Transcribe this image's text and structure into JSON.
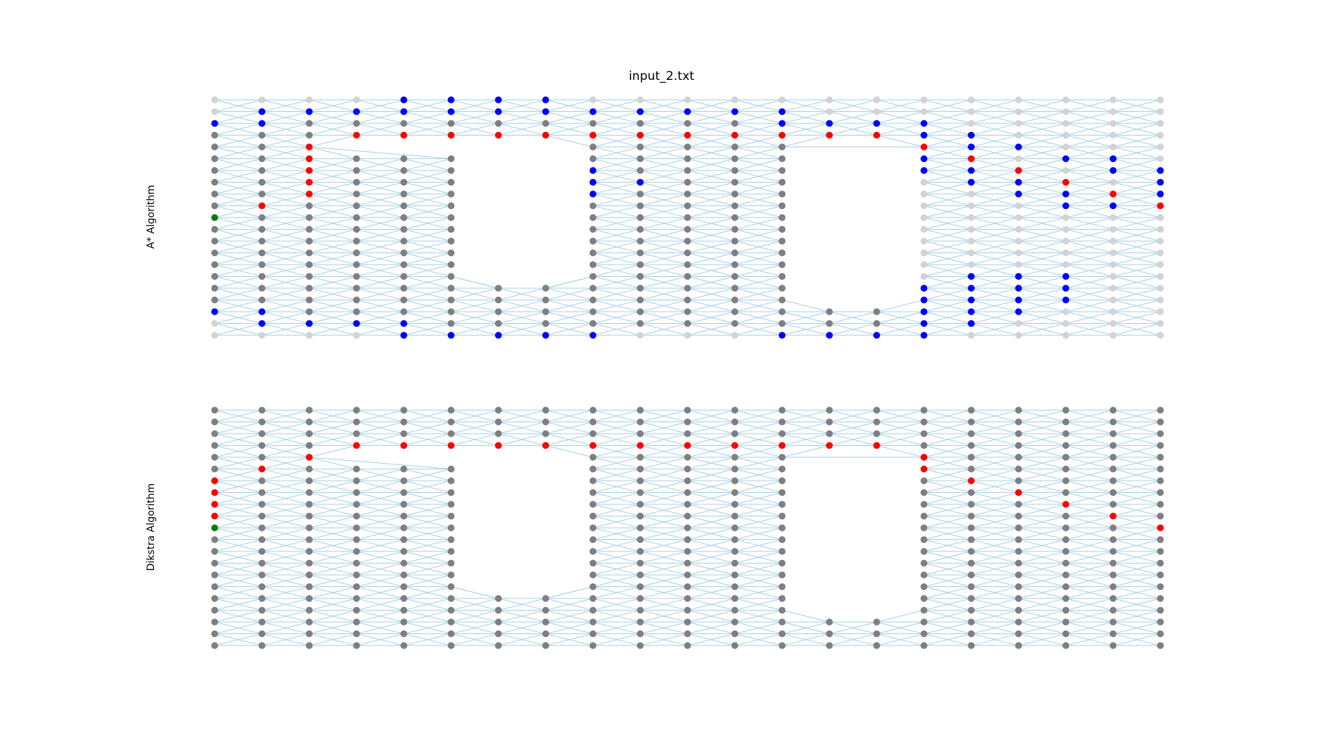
{
  "title": "input_2.txt",
  "chart_data": {
    "type": "scatter",
    "title": "input_2.txt",
    "grid": false,
    "legend": "none",
    "colors": {
      "edge": "#a6cfe3",
      "default": "#7f7f7f",
      "unvisited": "#d3d3d3",
      "visited": "#0000ff",
      "path": "#ff0000",
      "start": "#008000"
    },
    "grid_size": {
      "columns": 21,
      "rows": 21
    },
    "obstacles": [
      {
        "x_range": [
          5,
          8
        ],
        "y_range": [
          5,
          18
        ]
      },
      {
        "x_range": [
          8,
          11
        ],
        "y_range": [
          4,
          15
        ]
      },
      {
        "x_range": [
          14,
          17
        ],
        "y_range": [
          2,
          14
        ]
      },
      {
        "x_range": [
          17,
          20
        ],
        "y_range": [
          1,
          13
        ]
      }
    ],
    "panels": [
      {
        "name": "A* Algorithm",
        "start": [
          0,
          10
        ],
        "goal": [
          20,
          10
        ],
        "path": [
          [
            0,
            10
          ],
          [
            1,
            11
          ],
          [
            2,
            12
          ],
          [
            2,
            13
          ],
          [
            2,
            14
          ],
          [
            2,
            15
          ],
          [
            2,
            16
          ],
          [
            3,
            17
          ],
          [
            4,
            17
          ],
          [
            5,
            17
          ],
          [
            6,
            17
          ],
          [
            7,
            17
          ],
          [
            8,
            17
          ],
          [
            9,
            17
          ],
          [
            10,
            17
          ],
          [
            11,
            17
          ],
          [
            12,
            17
          ],
          [
            13,
            17
          ],
          [
            14,
            17
          ],
          [
            15,
            17
          ],
          [
            16,
            17
          ],
          [
            17,
            16
          ],
          [
            18,
            15
          ],
          [
            19,
            14
          ],
          [
            20,
            13
          ],
          [
            21,
            12
          ],
          [
            21,
            10
          ]
        ],
        "visited": [
          [
            4,
            20
          ],
          [
            5,
            20
          ],
          [
            6,
            20
          ],
          [
            7,
            20
          ],
          [
            1,
            19
          ],
          [
            2,
            19
          ],
          [
            3,
            19
          ],
          [
            4,
            19
          ],
          [
            5,
            19
          ],
          [
            6,
            19
          ],
          [
            7,
            19
          ],
          [
            8,
            19
          ],
          [
            9,
            19
          ],
          [
            10,
            19
          ],
          [
            11,
            19
          ],
          [
            12,
            19
          ],
          [
            13,
            19
          ],
          [
            0,
            18
          ],
          [
            1,
            18
          ],
          [
            12,
            18
          ],
          [
            13,
            18
          ],
          [
            14,
            18
          ],
          [
            15,
            18
          ],
          [
            16,
            18
          ],
          [
            16,
            17
          ],
          [
            17,
            17
          ],
          [
            17,
            16
          ],
          [
            18,
            16
          ],
          [
            19,
            15
          ],
          [
            20,
            15
          ],
          [
            17,
            14
          ],
          [
            18,
            14
          ],
          [
            19,
            14
          ],
          [
            20,
            14
          ],
          [
            21,
            14
          ],
          [
            8,
            14
          ],
          [
            17,
            13
          ],
          [
            18,
            13
          ],
          [
            19,
            13
          ],
          [
            20,
            13
          ],
          [
            21,
            13
          ],
          [
            8,
            13
          ],
          [
            9,
            13
          ],
          [
            17,
            12
          ],
          [
            18,
            12
          ],
          [
            19,
            12
          ],
          [
            20,
            12
          ],
          [
            21,
            12
          ],
          [
            8,
            12
          ],
          [
            18,
            11
          ],
          [
            19,
            11
          ],
          [
            20,
            11
          ],
          [
            15,
            5
          ],
          [
            16,
            5
          ],
          [
            17,
            5
          ],
          [
            16,
            4
          ],
          [
            17,
            4
          ],
          [
            18,
            4
          ],
          [
            16,
            3
          ],
          [
            17,
            3
          ],
          [
            18,
            3
          ],
          [
            0,
            2
          ],
          [
            1,
            2
          ],
          [
            16,
            2
          ],
          [
            17,
            2
          ],
          [
            18,
            2
          ],
          [
            1,
            1
          ],
          [
            2,
            1
          ],
          [
            3,
            1
          ],
          [
            4,
            1
          ],
          [
            5,
            1
          ],
          [
            16,
            1
          ],
          [
            17,
            1
          ],
          [
            4,
            0
          ],
          [
            5,
            0
          ],
          [
            6,
            0
          ],
          [
            7,
            0
          ],
          [
            8,
            0
          ],
          [
            12,
            0
          ],
          [
            13,
            0
          ],
          [
            14,
            0
          ],
          [
            16,
            0
          ]
        ],
        "unvisited": "right-side region and edges"
      },
      {
        "name": "Dikstra Algorithm",
        "start": [
          0,
          10
        ],
        "goal": [
          20,
          10
        ],
        "path": [
          [
            0,
            10
          ],
          [
            0,
            11
          ],
          [
            0,
            12
          ],
          [
            0,
            13
          ],
          [
            0,
            14
          ],
          [
            1,
            15
          ],
          [
            2,
            16
          ],
          [
            3,
            17
          ],
          [
            4,
            17
          ],
          [
            5,
            17
          ],
          [
            6,
            17
          ],
          [
            7,
            17
          ],
          [
            8,
            17
          ],
          [
            9,
            17
          ],
          [
            10,
            17
          ],
          [
            11,
            17
          ],
          [
            12,
            17
          ],
          [
            13,
            17
          ],
          [
            14,
            17
          ],
          [
            15,
            17
          ],
          [
            16,
            17
          ],
          [
            16,
            16
          ],
          [
            16,
            15
          ],
          [
            17,
            14
          ],
          [
            18,
            13
          ],
          [
            19,
            12
          ],
          [
            20,
            11
          ],
          [
            21,
            10
          ]
        ]
      }
    ]
  }
}
